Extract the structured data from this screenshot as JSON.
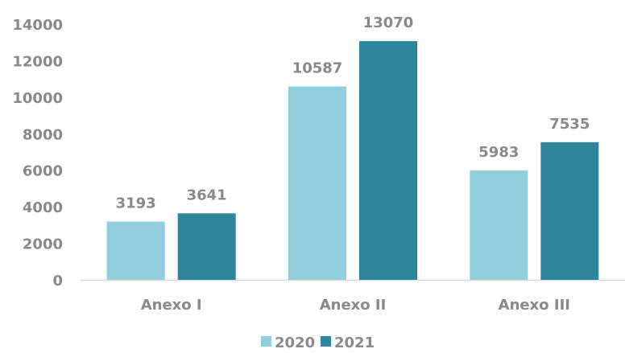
{
  "chart_data": {
    "type": "bar",
    "title": "",
    "xlabel": "",
    "ylabel": "",
    "categories": [
      "Anexo I",
      "Anexo II",
      "Anexo III"
    ],
    "series": [
      {
        "name": "2020",
        "values": [
          3193,
          10587,
          5983
        ],
        "color": "#92cddd"
      },
      {
        "name": "2021",
        "values": [
          3641,
          13070,
          7535
        ],
        "color": "#2e869c"
      }
    ],
    "ylim": [
      0,
      14000
    ],
    "yticks": [
      0,
      2000,
      4000,
      6000,
      8000,
      10000,
      12000,
      14000
    ],
    "grid": false,
    "legend_position": "bottom",
    "data_labels": true,
    "text_color": "#898989",
    "axis_color": "#d9d9d9"
  }
}
